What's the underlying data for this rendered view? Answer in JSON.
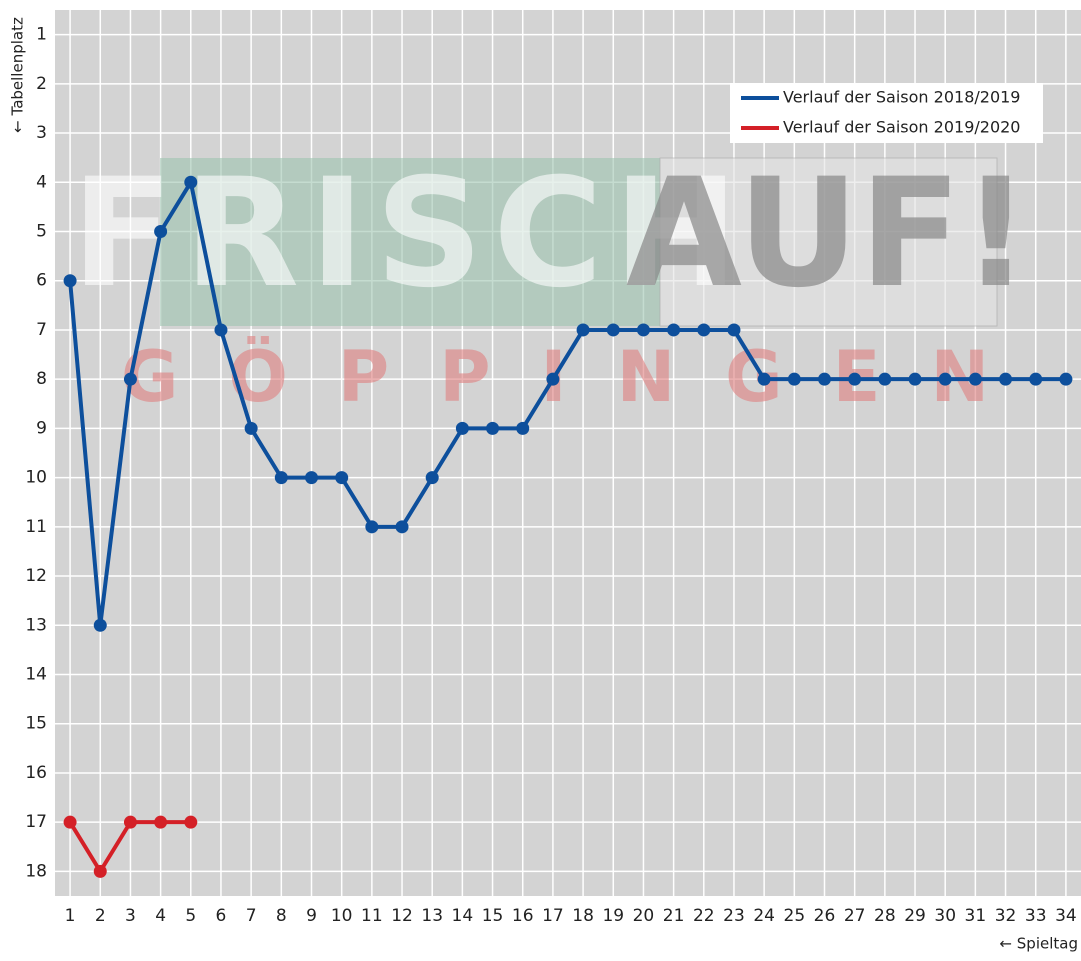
{
  "chart_data": {
    "type": "line",
    "y_axis_label": "← Tabellenplatz",
    "x_axis_label": "← Spieltag",
    "watermark": [
      "FRISCH",
      "AUF!",
      "GÖPPINGEN"
    ],
    "x": [
      1,
      2,
      3,
      4,
      5,
      6,
      7,
      8,
      9,
      10,
      11,
      12,
      13,
      14,
      15,
      16,
      17,
      18,
      19,
      20,
      21,
      22,
      23,
      24,
      25,
      26,
      27,
      28,
      29,
      30,
      31,
      32,
      33,
      34
    ],
    "series": [
      {
        "name": "Verlauf der Saison 2018/2019",
        "color": "#0d4f9c",
        "values": [
          6,
          13,
          8,
          5,
          4,
          7,
          9,
          10,
          10,
          10,
          11,
          11,
          10,
          9,
          9,
          9,
          8,
          7,
          7,
          7,
          7,
          7,
          7,
          8,
          8,
          8,
          8,
          8,
          8,
          8,
          8,
          8,
          8,
          8
        ]
      },
      {
        "name": "Verlauf der Saison 2019/2020",
        "color": "#d42027",
        "values": [
          17,
          18,
          17,
          17,
          17,
          null,
          null,
          null,
          null,
          null,
          null,
          null,
          null,
          null,
          null,
          null,
          null,
          null,
          null,
          null,
          null,
          null,
          null,
          null,
          null,
          null,
          null,
          null,
          null,
          null,
          null,
          null,
          null,
          null
        ]
      }
    ],
    "xlim": [
      0.5,
      34.5
    ],
    "xticks": [
      1,
      2,
      3,
      4,
      5,
      6,
      7,
      8,
      9,
      10,
      11,
      12,
      13,
      14,
      15,
      16,
      17,
      18,
      19,
      20,
      21,
      22,
      23,
      24,
      25,
      26,
      27,
      28,
      29,
      30,
      31,
      32,
      33,
      34
    ],
    "ylim": [
      18.5,
      0.5
    ],
    "yticks": [
      1,
      2,
      3,
      4,
      5,
      6,
      7,
      8,
      9,
      10,
      11,
      12,
      13,
      14,
      15,
      16,
      17,
      18
    ],
    "grid": true,
    "legend": "upper right"
  }
}
